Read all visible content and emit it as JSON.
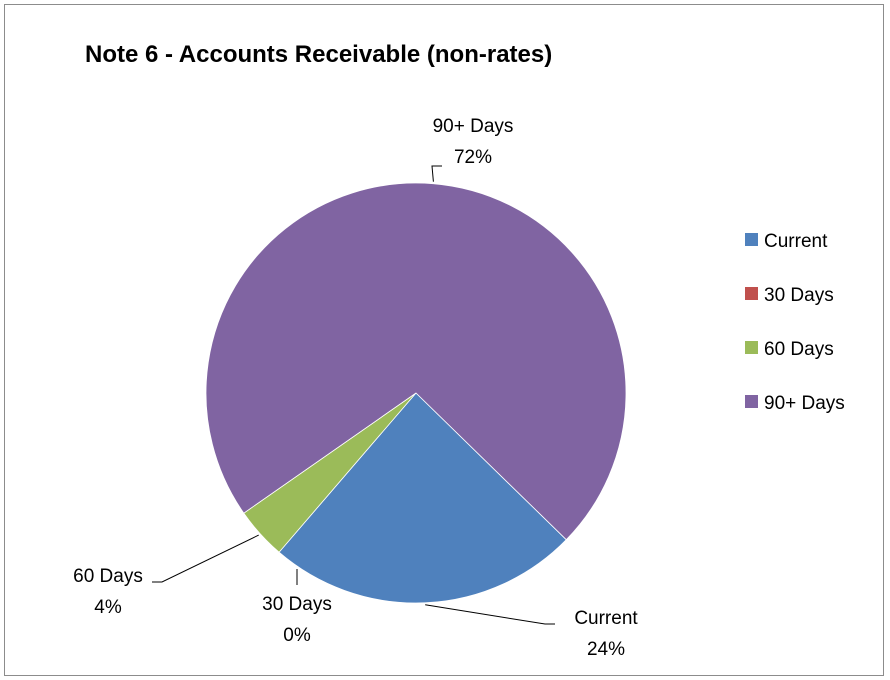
{
  "chart_data": {
    "type": "pie",
    "title": "Note 6 - Accounts Receivable (non-rates)",
    "categories": [
      "Current",
      "30 Days",
      "60 Days",
      "90+ Days"
    ],
    "values": [
      24,
      0,
      4,
      72
    ],
    "value_unit": "%",
    "data_labels": [
      {
        "category": "Current",
        "text": "24%"
      },
      {
        "category": "30 Days",
        "text": "0%"
      },
      {
        "category": "60 Days",
        "text": "4%"
      },
      {
        "category": "90+ Days",
        "text": "72%"
      }
    ],
    "colors": [
      "#4f81bd",
      "#c0504d",
      "#9bbb59",
      "#8064a2"
    ],
    "legend_placement": "right"
  }
}
